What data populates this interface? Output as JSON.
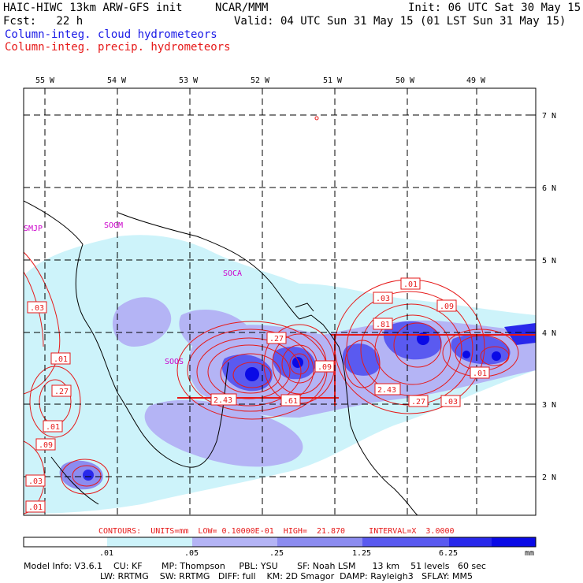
{
  "header": {
    "model_title": "HAIC-HIWC 13km ARW-GFS init",
    "institution": "NCAR/MMM",
    "init_time": "Init: 06 UTC Sat 30 May 15",
    "forecast": "Fcst:   22 h",
    "valid_time": "Valid: 04 UTC Sun 31 May 15 (01 LST Sun 31 May 15)",
    "field_cloud": "Column-integ. cloud hydrometeors",
    "field_precip": "Column-integ. precip. hydrometeors"
  },
  "map": {
    "lon_labels": [
      "55 W",
      "54 W",
      "53 W",
      "52 W",
      "51 W",
      "50 W",
      "49 W"
    ],
    "lat_labels": [
      "7 N",
      "6 N",
      "5 N",
      "4 N",
      "3 N",
      "2 N"
    ],
    "stations": [
      "SMJP",
      "SOGM",
      "SOCA",
      "SOOS"
    ],
    "contour_labels": [
      ".03",
      ".01",
      ".27",
      ".01",
      ".09",
      ".03",
      ".01",
      ".27",
      "2.43",
      ".61",
      ".09",
      ".01",
      ".03",
      ".09",
      ".81",
      "2.43",
      ".27",
      ".03",
      ".01"
    ]
  },
  "contour_info": "CONTOURS:  UNITS=mm  LOW= 0.10000E-01  HIGH=  21.870     INTERVAL=X  3.0000",
  "colorbar": {
    "ticks": [
      ".01",
      ".05",
      ".25",
      "1.25",
      "6.25"
    ],
    "unit": "mm",
    "colors": [
      "#ffffff",
      "#cdf3fa",
      "#b4b4f5",
      "#8c8cf0",
      "#5a5af0",
      "#2828eb",
      "#0a0ae6"
    ]
  },
  "footer": {
    "line1": "Model Info: V3.6.1    CU: KF       MP: Thompson     PBL: YSU       SF: Noah LSM      13 km    51 levels   60 sec",
    "line2": "LW: RRTMG    SW: RRTMG   DIFF: full    KM: 2D Smagor  DAMP: Rayleigh3   SFLAY: MM5"
  }
}
